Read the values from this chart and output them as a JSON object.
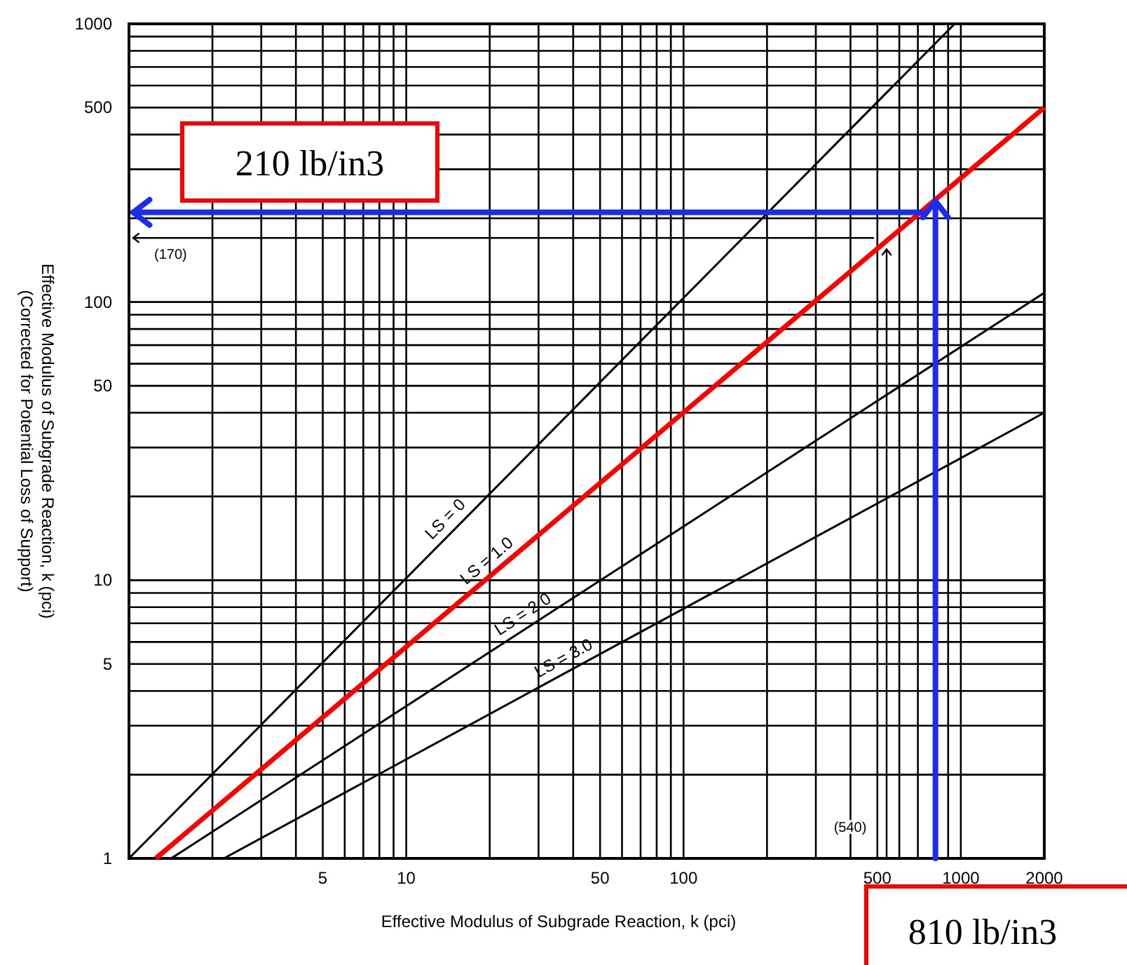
{
  "chart_data": {
    "type": "line",
    "xlabel": "Effective Modulus of Subgrade Reaction, k (pci)",
    "ylabel": "Effective Modulus of Subgrade Reaction, k (pci)\n(Corrected for Potential Loss of Support)",
    "log": "xy",
    "grid": true,
    "legend": false,
    "marker": "none",
    "line_style": "solid",
    "xlim": [
      1,
      2000
    ],
    "ylim": [
      1,
      1000
    ],
    "xticks": [
      {
        "value": 1,
        "label": null
      },
      {
        "value": 2,
        "label": null
      },
      {
        "value": 3,
        "label": null
      },
      {
        "value": 4,
        "label": null
      },
      5,
      {
        "value": 6,
        "label": null
      },
      {
        "value": 7,
        "label": null
      },
      {
        "value": 8,
        "label": null
      },
      {
        "value": 9,
        "label": null
      },
      10,
      {
        "value": 20,
        "label": null
      },
      {
        "value": 30,
        "label": null
      },
      {
        "value": 40,
        "label": null
      },
      50,
      {
        "value": 60,
        "label": null
      },
      {
        "value": 70,
        "label": null
      },
      {
        "value": 80,
        "label": null
      },
      {
        "value": 90,
        "label": null
      },
      100,
      {
        "value": 200,
        "label": null
      },
      {
        "value": 300,
        "label": null
      },
      {
        "value": 400,
        "label": null
      },
      500,
      {
        "value": 600,
        "label": null
      },
      {
        "value": 700,
        "label": null
      },
      {
        "value": 800,
        "label": null
      },
      {
        "value": 900,
        "label": null
      },
      1000,
      2000
    ],
    "yticks": [
      1,
      {
        "value": 2,
        "label": null
      },
      {
        "value": 3,
        "label": null
      },
      {
        "value": 4,
        "label": null
      },
      5,
      {
        "value": 6,
        "label": null
      },
      {
        "value": 7,
        "label": null
      },
      {
        "value": 8,
        "label": null
      },
      {
        "value": 9,
        "label": null
      },
      10,
      {
        "value": 20,
        "label": null
      },
      {
        "value": 30,
        "label": null
      },
      {
        "value": 40,
        "label": null
      },
      50,
      {
        "value": 60,
        "label": null
      },
      {
        "value": 70,
        "label": null
      },
      {
        "value": 80,
        "label": null
      },
      {
        "value": 90,
        "label": null
      },
      100,
      {
        "value": 200,
        "label": null
      },
      {
        "value": 300,
        "label": null
      },
      {
        "value": 400,
        "label": null
      },
      500,
      {
        "value": 600,
        "label": null
      },
      {
        "value": 700,
        "label": null
      },
      {
        "value": 800,
        "label": null
      },
      {
        "value": 900,
        "label": null
      },
      1000
    ],
    "series": [
      {
        "name": "LS = 0",
        "color": "#000000",
        "x": [
          1,
          950
        ],
        "values": [
          1,
          1000
        ]
      },
      {
        "name": "LS = 1.0",
        "color": "#ff0000",
        "x": [
          1.25,
          2000
        ],
        "values": [
          1,
          500
        ]
      },
      {
        "name": "LS = 2.0",
        "color": "#000000",
        "x": [
          1.42,
          2000
        ],
        "values": [
          1,
          108
        ]
      },
      {
        "name": "LS = 3.0",
        "color": "#000000",
        "x": [
          2.2,
          2000
        ],
        "values": [
          1,
          40
        ]
      }
    ],
    "ref_lines": [
      {
        "axis": "y",
        "value": 210,
        "label": "210 lb/in3",
        "color": "#1a2cf0"
      },
      {
        "axis": "x",
        "value": 810,
        "label": "810 lb/in3",
        "color": "#1a2cf0"
      },
      {
        "axis": "y",
        "value": 170,
        "label": "(170)",
        "color": "#000000"
      },
      {
        "axis": "x",
        "value": 540,
        "label": "(540)",
        "color": "#000000"
      }
    ]
  }
}
